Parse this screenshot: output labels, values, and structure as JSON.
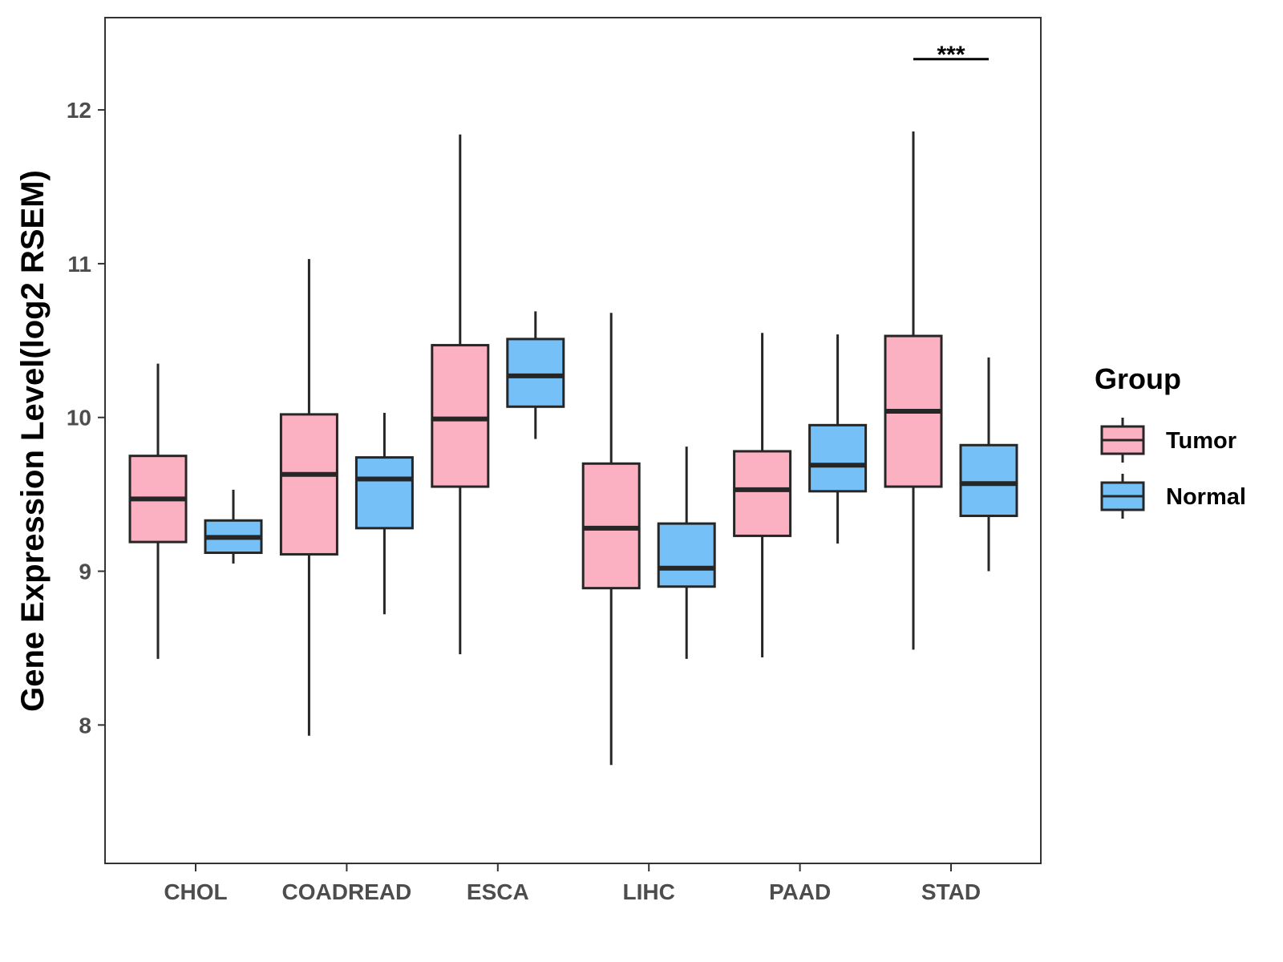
{
  "chart_data": {
    "type": "boxplot",
    "ylabel": "Gene Expression Level(log2 RSEM)",
    "xlabel": "",
    "ylim": [
      7.1,
      12.6
    ],
    "yticks": [
      8,
      9,
      10,
      11,
      12
    ],
    "categories": [
      "CHOL",
      "COADREAD",
      "ESCA",
      "LIHC",
      "PAAD",
      "STAD"
    ],
    "legend": {
      "title": "Group",
      "position": "right",
      "entries": [
        {
          "name": "Tumor",
          "color": "#FBB1C2"
        },
        {
          "name": "Normal",
          "color": "#74C0F7"
        }
      ]
    },
    "series": [
      {
        "name": "Tumor",
        "color": "#FBB1C2",
        "boxes": [
          {
            "min": 8.43,
            "q1": 9.19,
            "median": 9.47,
            "q3": 9.75,
            "max": 10.35
          },
          {
            "min": 7.93,
            "q1": 9.11,
            "median": 9.63,
            "q3": 10.02,
            "max": 11.03
          },
          {
            "min": 8.46,
            "q1": 9.55,
            "median": 9.99,
            "q3": 10.47,
            "max": 11.84
          },
          {
            "min": 7.74,
            "q1": 8.89,
            "median": 9.28,
            "q3": 9.7,
            "max": 10.68
          },
          {
            "min": 8.44,
            "q1": 9.23,
            "median": 9.53,
            "q3": 9.78,
            "max": 10.55
          },
          {
            "min": 8.49,
            "q1": 9.55,
            "median": 10.04,
            "q3": 10.53,
            "max": 11.86
          }
        ]
      },
      {
        "name": "Normal",
        "color": "#74C0F7",
        "boxes": [
          {
            "min": 9.05,
            "q1": 9.12,
            "median": 9.22,
            "q3": 9.33,
            "max": 9.53
          },
          {
            "min": 8.72,
            "q1": 9.28,
            "median": 9.6,
            "q3": 9.74,
            "max": 10.03
          },
          {
            "min": 9.86,
            "q1": 10.07,
            "median": 10.27,
            "q3": 10.51,
            "max": 10.69
          },
          {
            "min": 8.43,
            "q1": 8.9,
            "median": 9.02,
            "q3": 9.31,
            "max": 9.81
          },
          {
            "min": 9.18,
            "q1": 9.52,
            "median": 9.69,
            "q3": 9.95,
            "max": 10.54
          },
          {
            "min": 9.0,
            "q1": 9.36,
            "median": 9.57,
            "q3": 9.82,
            "max": 10.39
          }
        ]
      }
    ],
    "annotations": [
      {
        "category": "STAD",
        "text": "***",
        "y": 12.33
      }
    ]
  }
}
